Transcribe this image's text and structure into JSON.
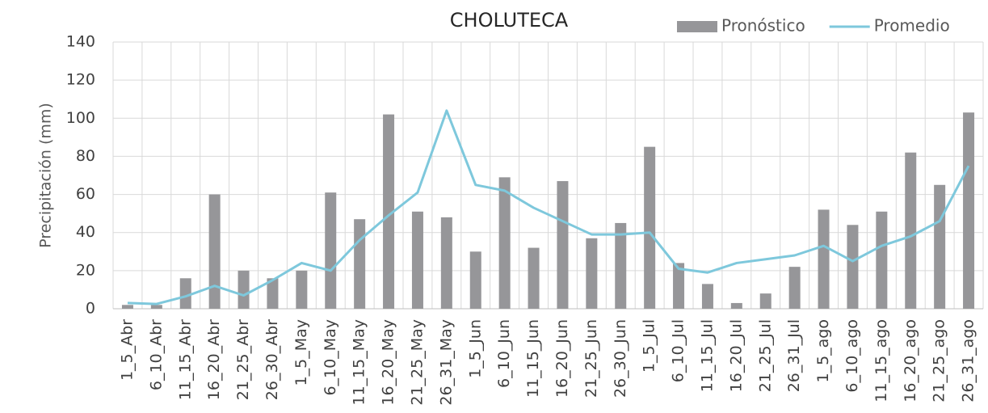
{
  "chart_data": {
    "type": "bar-line",
    "title": "CHOLUTECA",
    "y_label": "Precipitación (mm)",
    "categories": [
      "1_5_Abr",
      "6_10_Abr",
      "11_15_Abr",
      "16_20_Abr",
      "21_25_Abr",
      "26_30_Abr",
      "1_5_May",
      "6_10_May",
      "11_15_May",
      "16_20_May",
      "21_25_May",
      "26_31_May",
      "1_5_Jun",
      "6_10_Jun",
      "11_15_Jun",
      "16_20_Jun",
      "21_25_Jun",
      "26_30_Jun",
      "1_5_Jul",
      "6_10_Jul",
      "11_15_Jul",
      "16_20_Jul",
      "21_25_Jul",
      "26_31_Jul",
      "1_5_ago",
      "6_10_ago",
      "11_15_ago",
      "16_20_ago",
      "21_25_ago",
      "26_31_ago"
    ],
    "series": [
      {
        "name": "Pronóstico",
        "kind": "bar",
        "color": "#969699",
        "values": [
          2,
          2,
          16,
          60,
          20,
          16,
          20,
          61,
          47,
          102,
          51,
          48,
          30,
          69,
          32,
          67,
          37,
          45,
          85,
          24,
          13,
          3,
          8,
          22,
          52,
          44,
          51,
          82,
          65,
          103
        ]
      },
      {
        "name": "Promedio",
        "kind": "line",
        "color": "#7ec8dc",
        "values": [
          3,
          2.5,
          6.5,
          12,
          7,
          15,
          24,
          20,
          36,
          49,
          61,
          104,
          65,
          62,
          53,
          46,
          39,
          39,
          40,
          21,
          19,
          24,
          26,
          28,
          33,
          25,
          33,
          38,
          46,
          75
        ]
      }
    ],
    "ylim": [
      0,
      140
    ],
    "yticks": [
      0,
      20,
      40,
      60,
      80,
      100,
      120,
      140
    ],
    "grid": true
  }
}
